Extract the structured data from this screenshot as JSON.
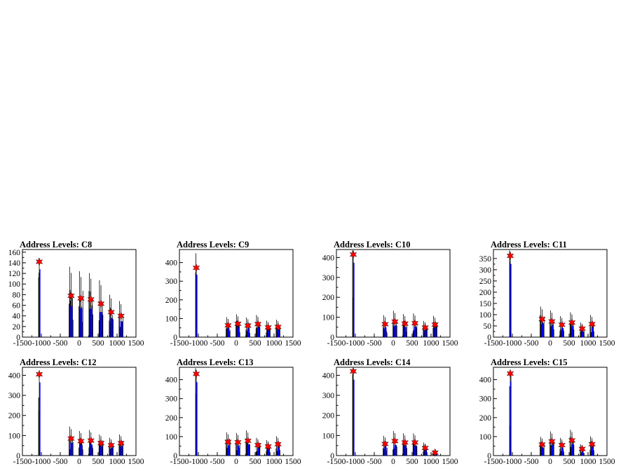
{
  "chart_data": [
    {
      "type": "bar",
      "title": "Address Levels: C8",
      "xlim": [
        -1500,
        1500
      ],
      "ylim": [
        0,
        165
      ],
      "xticks": [
        -1500,
        -1000,
        -500,
        0,
        500,
        1000,
        1500
      ],
      "yticks": [
        0,
        20,
        40,
        60,
        80,
        100,
        120,
        140,
        160
      ],
      "peaks": [
        {
          "x": -1055,
          "y": 142
        },
        {
          "x": -215,
          "y": 78
        },
        {
          "x": 45,
          "y": 73
        },
        {
          "x": 310,
          "y": 71
        },
        {
          "x": 575,
          "y": 63
        },
        {
          "x": 845,
          "y": 47
        },
        {
          "x": 1105,
          "y": 40
        }
      ]
    },
    {
      "type": "bar",
      "title": "Address Levels: C9",
      "xlim": [
        -1500,
        1500
      ],
      "ylim": [
        0,
        470
      ],
      "xticks": [
        -1500,
        -1000,
        -500,
        0,
        500,
        1000,
        1500
      ],
      "yticks": [
        0,
        100,
        200,
        300,
        400
      ],
      "peaks": [
        {
          "x": -1055,
          "y": 372
        },
        {
          "x": -215,
          "y": 63
        },
        {
          "x": 45,
          "y": 72
        },
        {
          "x": 310,
          "y": 62
        },
        {
          "x": 575,
          "y": 70
        },
        {
          "x": 845,
          "y": 52
        },
        {
          "x": 1105,
          "y": 55
        }
      ]
    },
    {
      "type": "bar",
      "title": "Address Levels: C10",
      "xlim": [
        -1500,
        1500
      ],
      "ylim": [
        0,
        440
      ],
      "xticks": [
        -1500,
        -1000,
        -500,
        0,
        500,
        1000,
        1500
      ],
      "yticks": [
        0,
        100,
        200,
        300,
        400
      ],
      "peaks": [
        {
          "x": -1055,
          "y": 415
        },
        {
          "x": -215,
          "y": 65
        },
        {
          "x": 45,
          "y": 78
        },
        {
          "x": 310,
          "y": 68
        },
        {
          "x": 575,
          "y": 70
        },
        {
          "x": 845,
          "y": 48
        },
        {
          "x": 1105,
          "y": 63
        }
      ]
    },
    {
      "type": "bar",
      "title": "Address Levels: C11",
      "xlim": [
        -1500,
        1500
      ],
      "ylim": [
        0,
        390
      ],
      "xticks": [
        -1500,
        -1000,
        -500,
        0,
        500,
        1000,
        1500
      ],
      "yticks": [
        0,
        50,
        100,
        150,
        200,
        250,
        300,
        350
      ],
      "peaks": [
        {
          "x": -1055,
          "y": 362
        },
        {
          "x": -215,
          "y": 80
        },
        {
          "x": 45,
          "y": 70
        },
        {
          "x": 310,
          "y": 55
        },
        {
          "x": 575,
          "y": 65
        },
        {
          "x": 845,
          "y": 38
        },
        {
          "x": 1105,
          "y": 58
        }
      ]
    },
    {
      "type": "bar",
      "title": "Address Levels: C12",
      "xlim": [
        -1500,
        1500
      ],
      "ylim": [
        0,
        440
      ],
      "xticks": [
        -1500,
        -1000,
        -500,
        0,
        500,
        1000,
        1500
      ],
      "yticks": [
        0,
        100,
        200,
        300,
        400
      ],
      "peaks": [
        {
          "x": -1055,
          "y": 405
        },
        {
          "x": -215,
          "y": 85
        },
        {
          "x": 45,
          "y": 72
        },
        {
          "x": 310,
          "y": 75
        },
        {
          "x": 575,
          "y": 62
        },
        {
          "x": 845,
          "y": 52
        },
        {
          "x": 1105,
          "y": 62
        }
      ]
    },
    {
      "type": "bar",
      "title": "Address Levels: C13",
      "xlim": [
        -1500,
        1500
      ],
      "ylim": [
        0,
        465
      ],
      "xticks": [
        -1500,
        -1000,
        -500,
        0,
        500,
        1000,
        1500
      ],
      "yticks": [
        0,
        100,
        200,
        300,
        400
      ],
      "peaks": [
        {
          "x": -1055,
          "y": 430
        },
        {
          "x": -215,
          "y": 72
        },
        {
          "x": 45,
          "y": 70
        },
        {
          "x": 310,
          "y": 78
        },
        {
          "x": 575,
          "y": 55
        },
        {
          "x": 845,
          "y": 48
        },
        {
          "x": 1105,
          "y": 60
        }
      ]
    },
    {
      "type": "bar",
      "title": "Address Levels: C14",
      "xlim": [
        -1500,
        1500
      ],
      "ylim": [
        0,
        440
      ],
      "xticks": [
        -1500,
        -1000,
        -500,
        0,
        500,
        1000,
        1500
      ],
      "yticks": [
        0,
        100,
        200,
        300,
        400
      ],
      "peaks": [
        {
          "x": -1055,
          "y": 420
        },
        {
          "x": -215,
          "y": 58
        },
        {
          "x": 45,
          "y": 72
        },
        {
          "x": 310,
          "y": 65
        },
        {
          "x": 575,
          "y": 65
        },
        {
          "x": 845,
          "y": 38
        },
        {
          "x": 1105,
          "y": 15
        }
      ]
    },
    {
      "type": "bar",
      "title": "Address Levels: C15",
      "xlim": [
        -1500,
        1500
      ],
      "ylim": [
        0,
        465
      ],
      "xticks": [
        -1500,
        -1000,
        -500,
        0,
        500,
        1000,
        1500
      ],
      "yticks": [
        0,
        100,
        200,
        300,
        400
      ],
      "peaks": [
        {
          "x": -1055,
          "y": 432
        },
        {
          "x": -215,
          "y": 58
        },
        {
          "x": 45,
          "y": 75
        },
        {
          "x": 310,
          "y": 55
        },
        {
          "x": 575,
          "y": 80
        },
        {
          "x": 845,
          "y": 35
        },
        {
          "x": 1105,
          "y": 60
        }
      ]
    }
  ],
  "colors": {
    "hist_line": "#000000",
    "hist_fill": "#0000ff",
    "marker": "#ff0000",
    "frame": "#000000"
  }
}
